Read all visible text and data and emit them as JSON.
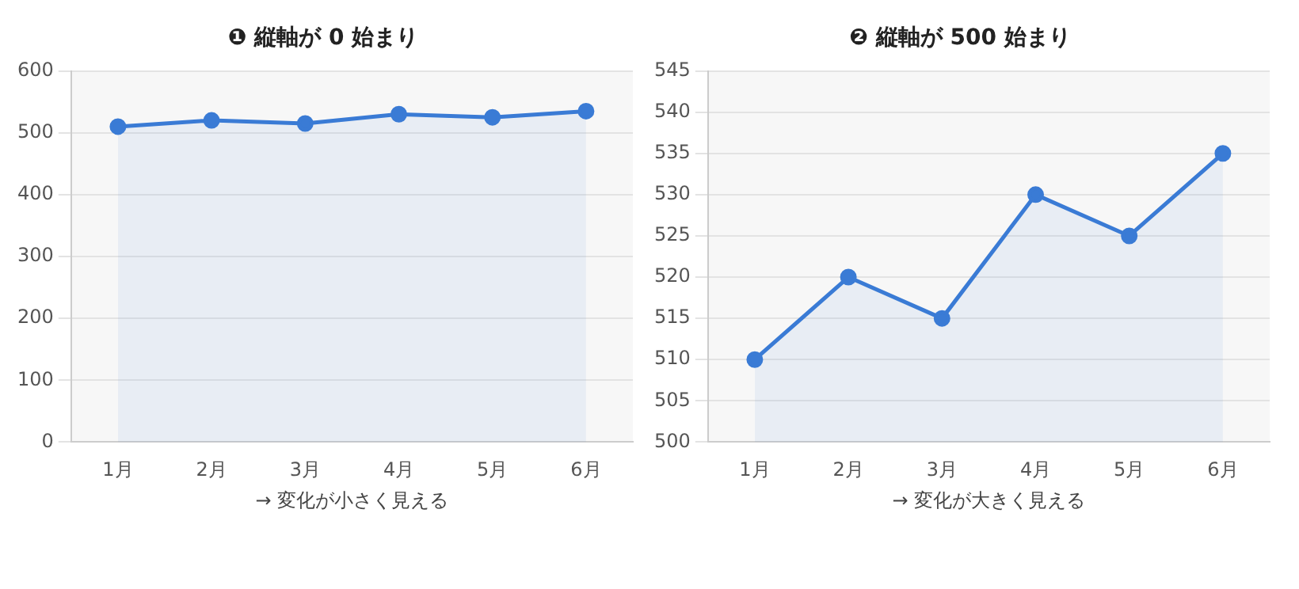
{
  "chart_data": [
    {
      "type": "area",
      "title": "❶ 縦軸が 0 始まり",
      "xlabel": "→ 変化が小さく見える",
      "categories": [
        "1月",
        "2月",
        "3月",
        "4月",
        "5月",
        "6月"
      ],
      "series": [
        {
          "color": "#3a7bd5",
          "values": [
            510,
            520,
            515,
            530,
            525,
            535
          ]
        }
      ],
      "ylim": [
        0,
        600
      ],
      "yticks": [
        0,
        100,
        200,
        300,
        400,
        500,
        600
      ],
      "grid": "y",
      "marker": "circle",
      "legend": false
    },
    {
      "type": "area",
      "title": "❷ 縦軸が 500 始まり",
      "xlabel": "→ 変化が大きく見える",
      "categories": [
        "1月",
        "2月",
        "3月",
        "4月",
        "5月",
        "6月"
      ],
      "series": [
        {
          "color": "#3a7bd5",
          "values": [
            510,
            520,
            515,
            530,
            525,
            535
          ]
        }
      ],
      "ylim": [
        500,
        545
      ],
      "yticks": [
        500,
        505,
        510,
        515,
        520,
        525,
        530,
        535,
        540,
        545
      ],
      "grid": "y",
      "marker": "circle",
      "legend": false
    }
  ]
}
